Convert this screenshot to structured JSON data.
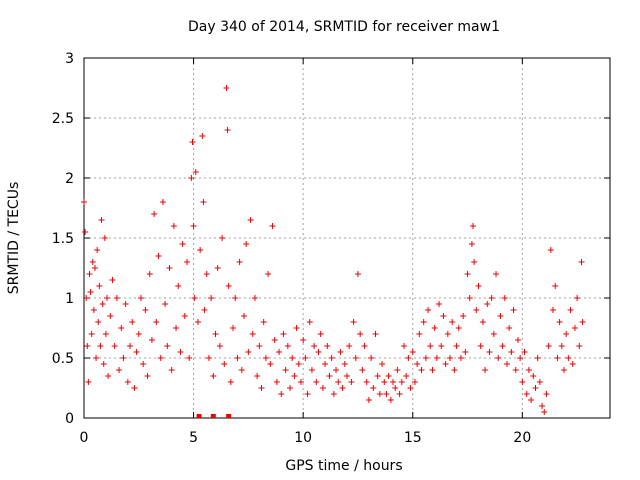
{
  "chart_data": {
    "type": "scatter",
    "title": "Day 340 of 2014, SRMTID for receiver maw1",
    "xlabel": "GPS time / hours",
    "ylabel": "SRMTID / TECUs",
    "xlim": [
      0,
      24
    ],
    "ylim": [
      0,
      3
    ],
    "xticks": [
      0,
      5,
      10,
      15,
      20
    ],
    "xtick_labels": [
      "0",
      "5",
      "10",
      "15",
      "20"
    ],
    "yticks": [
      0,
      0.5,
      1,
      1.5,
      2,
      2.5,
      3
    ],
    "ytick_labels": [
      "0",
      "0.5",
      "1",
      "1.5",
      "2",
      "2.5",
      "3"
    ],
    "grid": true,
    "marker": "plus",
    "series_color": "#ee0000",
    "zero_markers_x": [
      5.25,
      5.9,
      6.6
    ],
    "series": [
      {
        "name": "SRMTID",
        "points": [
          [
            0.0,
            1.8
          ],
          [
            0.05,
            1.55
          ],
          [
            0.1,
            1.0
          ],
          [
            0.15,
            0.6
          ],
          [
            0.2,
            0.3
          ],
          [
            0.25,
            1.2
          ],
          [
            0.3,
            1.05
          ],
          [
            0.35,
            0.7
          ],
          [
            0.4,
            1.3
          ],
          [
            0.45,
            0.9
          ],
          [
            0.5,
            1.25
          ],
          [
            0.55,
            0.5
          ],
          [
            0.6,
            1.4
          ],
          [
            0.65,
            0.8
          ],
          [
            0.7,
            1.1
          ],
          [
            0.75,
            0.6
          ],
          [
            0.8,
            1.65
          ],
          [
            0.85,
            0.95
          ],
          [
            0.9,
            0.45
          ],
          [
            0.95,
            1.5
          ],
          [
            1.0,
            0.7
          ],
          [
            1.05,
            1.0
          ],
          [
            1.1,
            0.35
          ],
          [
            1.2,
            0.85
          ],
          [
            1.3,
            1.15
          ],
          [
            1.4,
            0.6
          ],
          [
            1.5,
            1.0
          ],
          [
            1.6,
            0.4
          ],
          [
            1.7,
            0.75
          ],
          [
            1.8,
            0.5
          ],
          [
            1.9,
            0.95
          ],
          [
            2.0,
            0.3
          ],
          [
            2.1,
            0.6
          ],
          [
            2.2,
            0.8
          ],
          [
            2.3,
            0.25
          ],
          [
            2.4,
            0.55
          ],
          [
            2.5,
            0.7
          ],
          [
            2.6,
            1.0
          ],
          [
            2.7,
            0.45
          ],
          [
            2.8,
            0.9
          ],
          [
            2.9,
            0.35
          ],
          [
            3.0,
            1.2
          ],
          [
            3.1,
            0.65
          ],
          [
            3.2,
            1.7
          ],
          [
            3.3,
            0.8
          ],
          [
            3.4,
            1.35
          ],
          [
            3.5,
            0.5
          ],
          [
            3.6,
            1.8
          ],
          [
            3.7,
            0.95
          ],
          [
            3.8,
            0.6
          ],
          [
            3.9,
            1.25
          ],
          [
            4.0,
            0.4
          ],
          [
            4.1,
            1.6
          ],
          [
            4.2,
            0.75
          ],
          [
            4.3,
            1.1
          ],
          [
            4.4,
            0.55
          ],
          [
            4.5,
            1.45
          ],
          [
            4.6,
            0.85
          ],
          [
            4.7,
            1.3
          ],
          [
            4.8,
            0.5
          ],
          [
            4.9,
            2.0
          ],
          [
            4.95,
            2.3
          ],
          [
            5.0,
            1.6
          ],
          [
            5.05,
            1.0
          ],
          [
            5.1,
            2.05
          ],
          [
            5.2,
            0.8
          ],
          [
            5.3,
            1.4
          ],
          [
            5.4,
            2.35
          ],
          [
            5.45,
            1.8
          ],
          [
            5.5,
            0.9
          ],
          [
            5.6,
            1.2
          ],
          [
            5.7,
            0.5
          ],
          [
            5.8,
            1.0
          ],
          [
            5.9,
            0.35
          ],
          [
            6.0,
            0.7
          ],
          [
            6.1,
            1.25
          ],
          [
            6.2,
            0.6
          ],
          [
            6.3,
            1.5
          ],
          [
            6.4,
            0.45
          ],
          [
            6.5,
            2.75
          ],
          [
            6.55,
            2.4
          ],
          [
            6.6,
            1.1
          ],
          [
            6.7,
            0.3
          ],
          [
            6.8,
            0.75
          ],
          [
            6.9,
            1.0
          ],
          [
            7.0,
            0.5
          ],
          [
            7.1,
            1.3
          ],
          [
            7.2,
            0.4
          ],
          [
            7.3,
            0.85
          ],
          [
            7.4,
            1.45
          ],
          [
            7.5,
            0.55
          ],
          [
            7.6,
            1.65
          ],
          [
            7.7,
            0.7
          ],
          [
            7.8,
            1.0
          ],
          [
            7.9,
            0.35
          ],
          [
            8.0,
            0.6
          ],
          [
            8.1,
            0.25
          ],
          [
            8.2,
            0.8
          ],
          [
            8.3,
            0.5
          ],
          [
            8.4,
            1.2
          ],
          [
            8.5,
            0.45
          ],
          [
            8.6,
            1.6
          ],
          [
            8.7,
            0.65
          ],
          [
            8.8,
            0.3
          ],
          [
            8.9,
            0.55
          ],
          [
            9.0,
            0.2
          ],
          [
            9.1,
            0.7
          ],
          [
            9.2,
            0.4
          ],
          [
            9.3,
            0.6
          ],
          [
            9.4,
            0.25
          ],
          [
            9.5,
            0.5
          ],
          [
            9.6,
            0.35
          ],
          [
            9.7,
            0.75
          ],
          [
            9.8,
            0.45
          ],
          [
            9.9,
            0.3
          ],
          [
            10.0,
            0.65
          ],
          [
            10.1,
            0.5
          ],
          [
            10.2,
            0.2
          ],
          [
            10.3,
            0.8
          ],
          [
            10.4,
            0.4
          ],
          [
            10.5,
            0.6
          ],
          [
            10.6,
            0.3
          ],
          [
            10.7,
            0.55
          ],
          [
            10.8,
            0.7
          ],
          [
            10.9,
            0.25
          ],
          [
            11.0,
            0.45
          ],
          [
            11.1,
            0.6
          ],
          [
            11.2,
            0.35
          ],
          [
            11.3,
            0.5
          ],
          [
            11.4,
            0.2
          ],
          [
            11.5,
            0.4
          ],
          [
            11.6,
            0.3
          ],
          [
            11.7,
            0.55
          ],
          [
            11.8,
            0.25
          ],
          [
            11.9,
            0.45
          ],
          [
            12.0,
            0.35
          ],
          [
            12.1,
            0.6
          ],
          [
            12.2,
            0.3
          ],
          [
            12.3,
            0.8
          ],
          [
            12.4,
            0.5
          ],
          [
            12.5,
            1.2
          ],
          [
            12.6,
            0.7
          ],
          [
            12.7,
            0.4
          ],
          [
            12.8,
            0.6
          ],
          [
            12.9,
            0.3
          ],
          [
            13.0,
            0.15
          ],
          [
            13.1,
            0.5
          ],
          [
            13.2,
            0.25
          ],
          [
            13.3,
            0.7
          ],
          [
            13.4,
            0.35
          ],
          [
            13.5,
            0.2
          ],
          [
            13.6,
            0.45
          ],
          [
            13.7,
            0.3
          ],
          [
            13.8,
            0.2
          ],
          [
            13.9,
            0.35
          ],
          [
            14.0,
            0.15
          ],
          [
            14.1,
            0.3
          ],
          [
            14.2,
            0.25
          ],
          [
            14.3,
            0.4
          ],
          [
            14.4,
            0.2
          ],
          [
            14.5,
            0.3
          ],
          [
            14.6,
            0.6
          ],
          [
            14.7,
            0.35
          ],
          [
            14.8,
            0.5
          ],
          [
            14.9,
            0.25
          ],
          [
            15.0,
            0.55
          ],
          [
            15.1,
            0.3
          ],
          [
            15.2,
            0.45
          ],
          [
            15.3,
            0.7
          ],
          [
            15.4,
            0.4
          ],
          [
            15.5,
            0.8
          ],
          [
            15.6,
            0.5
          ],
          [
            15.7,
            0.9
          ],
          [
            15.8,
            0.6
          ],
          [
            15.9,
            0.4
          ],
          [
            16.0,
            0.75
          ],
          [
            16.1,
            0.5
          ],
          [
            16.2,
            0.95
          ],
          [
            16.3,
            0.6
          ],
          [
            16.4,
            0.85
          ],
          [
            16.5,
            0.45
          ],
          [
            16.6,
            0.7
          ],
          [
            16.7,
            0.5
          ],
          [
            16.8,
            0.8
          ],
          [
            16.9,
            0.4
          ],
          [
            17.0,
            0.6
          ],
          [
            17.1,
            0.75
          ],
          [
            17.2,
            0.5
          ],
          [
            17.3,
            0.85
          ],
          [
            17.4,
            0.55
          ],
          [
            17.5,
            1.2
          ],
          [
            17.6,
            1.0
          ],
          [
            17.7,
            1.45
          ],
          [
            17.75,
            1.6
          ],
          [
            17.8,
            1.3
          ],
          [
            17.9,
            0.9
          ],
          [
            18.0,
            1.1
          ],
          [
            18.1,
            0.6
          ],
          [
            18.2,
            0.8
          ],
          [
            18.3,
            0.4
          ],
          [
            18.4,
            0.95
          ],
          [
            18.5,
            0.55
          ],
          [
            18.6,
            1.0
          ],
          [
            18.7,
            0.7
          ],
          [
            18.8,
            1.2
          ],
          [
            18.9,
            0.5
          ],
          [
            19.0,
            0.85
          ],
          [
            19.1,
            0.6
          ],
          [
            19.2,
            1.0
          ],
          [
            19.3,
            0.45
          ],
          [
            19.4,
            0.75
          ],
          [
            19.5,
            0.55
          ],
          [
            19.6,
            0.9
          ],
          [
            19.7,
            0.4
          ],
          [
            19.8,
            0.65
          ],
          [
            19.9,
            0.5
          ],
          [
            20.0,
            0.3
          ],
          [
            20.1,
            0.55
          ],
          [
            20.2,
            0.2
          ],
          [
            20.3,
            0.4
          ],
          [
            20.4,
            0.15
          ],
          [
            20.5,
            0.35
          ],
          [
            20.6,
            0.25
          ],
          [
            20.7,
            0.5
          ],
          [
            20.8,
            0.3
          ],
          [
            20.9,
            0.1
          ],
          [
            21.0,
            0.05
          ],
          [
            21.1,
            0.2
          ],
          [
            21.2,
            0.6
          ],
          [
            21.3,
            1.4
          ],
          [
            21.4,
            0.9
          ],
          [
            21.5,
            1.1
          ],
          [
            21.6,
            0.5
          ],
          [
            21.7,
            0.8
          ],
          [
            21.8,
            0.6
          ],
          [
            21.9,
            0.4
          ],
          [
            22.0,
            0.7
          ],
          [
            22.1,
            0.5
          ],
          [
            22.2,
            0.9
          ],
          [
            22.3,
            0.45
          ],
          [
            22.4,
            0.75
          ],
          [
            22.5,
            1.0
          ],
          [
            22.6,
            0.6
          ],
          [
            22.7,
            1.3
          ],
          [
            22.75,
            0.8
          ]
        ]
      }
    ]
  }
}
